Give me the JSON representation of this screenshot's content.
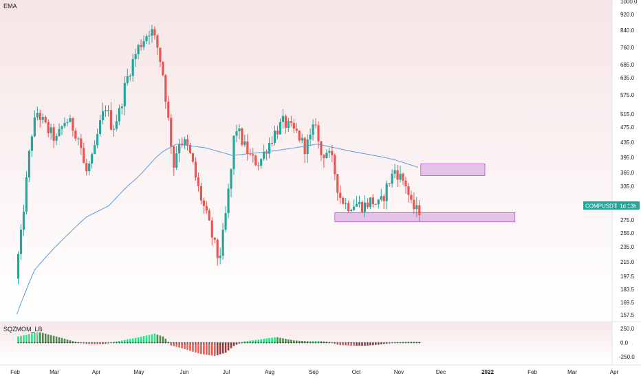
{
  "main_pane": {
    "indicator_label": "EMA",
    "price_ticks": [
      "1000.0",
      "920.0",
      "840.0",
      "760.0",
      "685.0",
      "635.0",
      "575.0",
      "515.0",
      "475.0",
      "435.0",
      "395.0",
      "365.0",
      "335.0",
      "305.0",
      "275.0",
      "255.0",
      "235.0",
      "215.0",
      "197.5",
      "183.5",
      "169.5",
      "157.5"
    ],
    "symbol_tag": {
      "symbol": "COMPUSDT",
      "countdown": "1d 13h",
      "color": "#26a69a"
    }
  },
  "lower_pane": {
    "indicator_label": "SQZMOM_LB",
    "ticks": [
      "250.0",
      "0.0",
      "-250.0"
    ]
  },
  "time_axis": [
    "Feb",
    "Mar",
    "Apr",
    "May",
    "Jun",
    "Jul",
    "Aug",
    "Sep",
    "Oct",
    "Nov",
    "Dec",
    "2022",
    "Feb",
    "Mar",
    "Apr"
  ],
  "colors": {
    "up": "#26a69a",
    "down": "#ef5350",
    "ema": "#5b9bd5",
    "zone_fill": "#e1bee7",
    "zone_stroke": "#ab47bc",
    "bg_top": "#f6e5e6",
    "bg_bottom": "#ffffff",
    "squeeze_cross": "#333333"
  },
  "chart_data": [
    {
      "type": "candlestick",
      "title": "",
      "indicator": "EMA",
      "y_scale": "log",
      "ylim": [
        150,
        1000
      ],
      "grid": false,
      "x_period": "2021-01-28 to 2021-11-18 (daily)",
      "price_path_points": [
        [
          "2021-01-28",
          195
        ],
        [
          "2021-02-01",
          250
        ],
        [
          "2021-02-05",
          345
        ],
        [
          "2021-02-09",
          460
        ],
        [
          "2021-02-13",
          520
        ],
        [
          "2021-02-20",
          470
        ],
        [
          "2021-02-27",
          440
        ],
        [
          "2021-03-06",
          500
        ],
        [
          "2021-03-12",
          470
        ],
        [
          "2021-03-16",
          440
        ],
        [
          "2021-03-20",
          360
        ],
        [
          "2021-03-26",
          395
        ],
        [
          "2021-03-30",
          470
        ],
        [
          "2021-04-04",
          540
        ],
        [
          "2021-04-09",
          470
        ],
        [
          "2021-04-14",
          520
        ],
        [
          "2021-04-19",
          620
        ],
        [
          "2021-04-24",
          700
        ],
        [
          "2021-04-28",
          760
        ],
        [
          "2021-05-03",
          810
        ],
        [
          "2021-05-07",
          850
        ],
        [
          "2021-05-12",
          760
        ],
        [
          "2021-05-16",
          650
        ],
        [
          "2021-05-19",
          530
        ],
        [
          "2021-05-21",
          460
        ],
        [
          "2021-05-24",
          380
        ],
        [
          "2021-05-28",
          440
        ],
        [
          "2021-06-02",
          430
        ],
        [
          "2021-06-06",
          390
        ],
        [
          "2021-06-11",
          330
        ],
        [
          "2021-06-16",
          290
        ],
        [
          "2021-06-21",
          250
        ],
        [
          "2021-06-26",
          215
        ],
        [
          "2021-06-29",
          250
        ],
        [
          "2021-07-02",
          300
        ],
        [
          "2021-07-05",
          370
        ],
        [
          "2021-07-08",
          480
        ],
        [
          "2021-07-14",
          430
        ],
        [
          "2021-07-20",
          390
        ],
        [
          "2021-07-26",
          385
        ],
        [
          "2021-07-31",
          420
        ],
        [
          "2021-08-06",
          460
        ],
        [
          "2021-08-12",
          490
        ],
        [
          "2021-08-18",
          470
        ],
        [
          "2021-08-23",
          455
        ],
        [
          "2021-08-28",
          420
        ],
        [
          "2021-09-02",
          450
        ],
        [
          "2021-09-05",
          495
        ],
        [
          "2021-09-08",
          400
        ],
        [
          "2021-09-13",
          410
        ],
        [
          "2021-09-18",
          380
        ],
        [
          "2021-09-22",
          320
        ],
        [
          "2021-09-28",
          300
        ],
        [
          "2021-10-04",
          305
        ],
        [
          "2021-10-10",
          300
        ],
        [
          "2021-10-16",
          310
        ],
        [
          "2021-10-22",
          300
        ],
        [
          "2021-10-28",
          340
        ],
        [
          "2021-11-02",
          370
        ],
        [
          "2021-11-06",
          355
        ],
        [
          "2021-11-10",
          340
        ],
        [
          "2021-11-14",
          300
        ],
        [
          "2021-11-18",
          292
        ]
      ],
      "ema_points": [
        [
          "2021-01-28",
          158
        ],
        [
          "2021-02-10",
          205
        ],
        [
          "2021-03-05",
          250
        ],
        [
          "2021-03-20",
          280
        ],
        [
          "2021-04-05",
          300
        ],
        [
          "2021-04-25",
          350
        ],
        [
          "2021-05-15",
          410
        ],
        [
          "2021-05-25",
          430
        ],
        [
          "2021-06-15",
          420
        ],
        [
          "2021-07-05",
          400
        ],
        [
          "2021-08-01",
          410
        ],
        [
          "2021-08-20",
          420
        ],
        [
          "2021-09-05",
          430
        ],
        [
          "2021-10-01",
          410
        ],
        [
          "2021-11-01",
          390
        ],
        [
          "2021-11-18",
          375
        ]
      ],
      "zones": [
        {
          "from": "2021-11-20",
          "to": "2022-01-06",
          "low": 358,
          "high": 382
        },
        {
          "from": "2021-09-18",
          "to": "2022-01-28",
          "low": 272,
          "high": 288
        }
      ]
    },
    {
      "type": "histogram",
      "indicator": "SQZMOM_LB",
      "ylim": [
        -300,
        300
      ],
      "grid": false,
      "momentum_points": [
        [
          "2021-01-28",
          110
        ],
        [
          "2021-02-12",
          190
        ],
        [
          "2021-02-28",
          90
        ],
        [
          "2021-03-10",
          20
        ],
        [
          "2021-03-20",
          -25
        ],
        [
          "2021-03-30",
          -30
        ],
        [
          "2021-04-10",
          20
        ],
        [
          "2021-04-25",
          90
        ],
        [
          "2021-05-08",
          160
        ],
        [
          "2021-05-15",
          100
        ],
        [
          "2021-05-20",
          -50
        ],
        [
          "2021-05-28",
          -100
        ],
        [
          "2021-06-10",
          -200
        ],
        [
          "2021-06-21",
          -240
        ],
        [
          "2021-06-29",
          -180
        ],
        [
          "2021-07-05",
          -60
        ],
        [
          "2021-07-12",
          20
        ],
        [
          "2021-07-22",
          50
        ],
        [
          "2021-08-05",
          100
        ],
        [
          "2021-08-18",
          40
        ],
        [
          "2021-08-28",
          25
        ],
        [
          "2021-09-05",
          30
        ],
        [
          "2021-09-13",
          10
        ],
        [
          "2021-09-20",
          -45
        ],
        [
          "2021-09-30",
          -55
        ],
        [
          "2021-10-10",
          -55
        ],
        [
          "2021-10-20",
          -35
        ],
        [
          "2021-11-01",
          5
        ],
        [
          "2021-11-10",
          15
        ],
        [
          "2021-11-18",
          10
        ]
      ]
    }
  ]
}
